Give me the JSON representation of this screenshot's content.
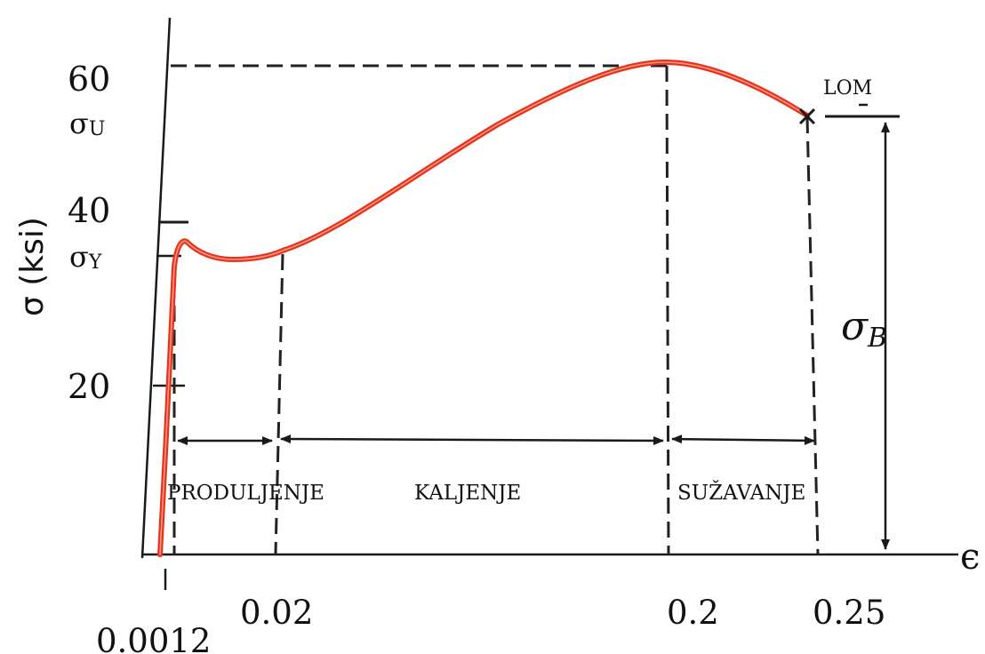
{
  "y_axis": {
    "label": "σ (ksi)",
    "ticks": [
      "60",
      "40",
      "20"
    ],
    "sigma_u": {
      "symbol": "σ",
      "sub": "U"
    },
    "sigma_y": {
      "symbol": "σ",
      "sub": "Y"
    }
  },
  "x_axis": {
    "symbol": "ϵ",
    "ticks": [
      "0.02",
      "0.2",
      "0.25"
    ],
    "first_tick": "0.0012"
  },
  "regions": {
    "produljenje": "PRODULJENJE",
    "kaljenje": "KALJENJE",
    "suzavanje": "SUŽAVANJE"
  },
  "fracture_label": "LOM",
  "breaking_stress": {
    "symbol": "σ",
    "sub": "B"
  },
  "colors": {
    "curve": "#e8321c",
    "curve_core": "#f59a84",
    "lines": "#1a1a1a"
  }
}
